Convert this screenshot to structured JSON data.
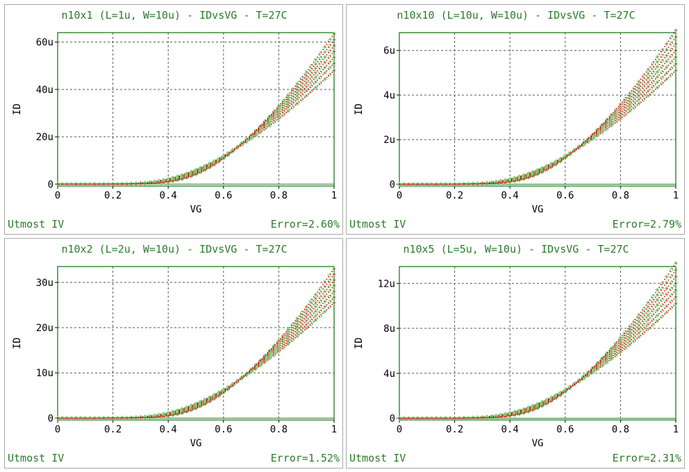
{
  "panels": [
    {
      "title": "n10x1 (L=1u, W=10u) - IDvsVG - T=27C",
      "footer_left": "Utmost IV",
      "footer_right": "Error=2.60%",
      "chart_data": {
        "type": "scatter",
        "xlabel": "VG",
        "ylabel": "ID",
        "xlim": [
          0,
          1
        ],
        "ylim": [
          -0.8,
          64
        ],
        "xticks": [
          0,
          0.2,
          0.4,
          0.6,
          0.8,
          1
        ],
        "xtick_labels": [
          "0",
          "0.2",
          "0.4",
          "0.6",
          "0.8",
          "1"
        ],
        "yticks": [
          0,
          20,
          40,
          60
        ],
        "ytick_labels": [
          "0",
          "20u",
          "40u",
          "60u"
        ],
        "grid": true,
        "series_final_values": [
          48,
          51,
          53.5,
          56,
          58.5,
          61,
          63.5
        ],
        "threshold_values": [
          0.33,
          0.345,
          0.36,
          0.375,
          0.39,
          0.405,
          0.42
        ]
      }
    },
    {
      "title": "n10x10 (L=10u, W=10u) - IDvsVG - T=27C",
      "footer_left": "Utmost IV",
      "footer_right": "Error=2.79%",
      "chart_data": {
        "type": "scatter",
        "xlabel": "VG",
        "ylabel": "ID",
        "xlim": [
          0,
          1
        ],
        "ylim": [
          -0.08,
          6.8
        ],
        "xticks": [
          0,
          0.2,
          0.4,
          0.6,
          0.8,
          1
        ],
        "xtick_labels": [
          "0",
          "0.2",
          "0.4",
          "0.6",
          "0.8",
          "1"
        ],
        "yticks": [
          0,
          2,
          4,
          6
        ],
        "ytick_labels": [
          "0",
          "2u",
          "4u",
          "6u"
        ],
        "grid": true,
        "series_final_values": [
          5.1,
          5.4,
          5.7,
          6.0,
          6.3,
          6.6,
          6.9
        ],
        "threshold_values": [
          0.33,
          0.345,
          0.36,
          0.375,
          0.39,
          0.405,
          0.42
        ]
      }
    },
    {
      "title": "n10x2 (L=2u, W=10u) - IDvsVG - T=27C",
      "footer_left": "Utmost IV",
      "footer_right": "Error=1.52%",
      "chart_data": {
        "type": "scatter",
        "xlabel": "VG",
        "ylabel": "ID",
        "xlim": [
          0,
          1
        ],
        "ylim": [
          -0.4,
          33.5
        ],
        "xticks": [
          0,
          0.2,
          0.4,
          0.6,
          0.8,
          1
        ],
        "xtick_labels": [
          "0",
          "0.2",
          "0.4",
          "0.6",
          "0.8",
          "1"
        ],
        "yticks": [
          0,
          10,
          20,
          30
        ],
        "ytick_labels": [
          "0",
          "10u",
          "20u",
          "30u"
        ],
        "grid": true,
        "series_final_values": [
          25.5,
          26.7,
          28,
          29.3,
          30.5,
          31.8,
          33
        ],
        "threshold_values": [
          0.33,
          0.345,
          0.36,
          0.375,
          0.39,
          0.405,
          0.42
        ]
      }
    },
    {
      "title": "n10x5 (L=5u, W=10u) - IDvsVG - T=27C",
      "footer_left": "Utmost IV",
      "footer_right": "Error=2.31%",
      "chart_data": {
        "type": "scatter",
        "xlabel": "VG",
        "ylabel": "ID",
        "xlim": [
          0,
          1
        ],
        "ylim": [
          -0.15,
          13.5
        ],
        "xticks": [
          0,
          0.2,
          0.4,
          0.6,
          0.8,
          1
        ],
        "xtick_labels": [
          "0",
          "0.2",
          "0.4",
          "0.6",
          "0.8",
          "1"
        ],
        "yticks": [
          0,
          4,
          8,
          12
        ],
        "ytick_labels": [
          "0",
          "4u",
          "8u",
          "12u"
        ],
        "grid": true,
        "series_final_values": [
          10.2,
          10.8,
          11.4,
          12.0,
          12.6,
          13.2,
          13.8
        ],
        "threshold_values": [
          0.33,
          0.345,
          0.36,
          0.375,
          0.39,
          0.405,
          0.42
        ]
      }
    }
  ],
  "colors": {
    "frame": "#1e7a1e",
    "grid": "#555555",
    "measured": "#7cd67c",
    "simulated": "#cc0000",
    "text": "#2a7a2a",
    "axis_text": "#000000"
  }
}
